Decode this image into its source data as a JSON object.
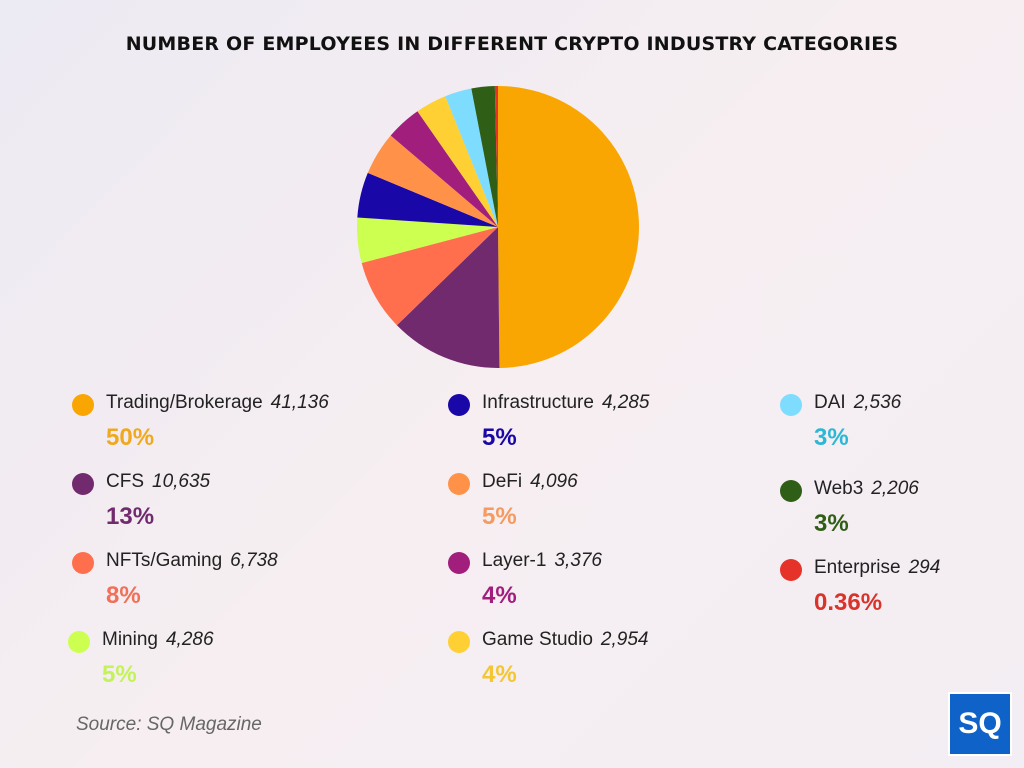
{
  "chart_data": {
    "type": "pie",
    "title": "NUMBER OF EMPLOYEES IN DIFFERENT CRYPTO INDUSTRY CATEGORIES",
    "legend_position": "bottom",
    "slices": [
      {
        "label": "Trading/Brokerage",
        "value": 41136,
        "value_label": "41,136",
        "percent": "50%",
        "color": "#F9A602",
        "text_color": "#F0A91E"
      },
      {
        "label": "CFS",
        "value": 10635,
        "value_label": "10,635",
        "percent": "13%",
        "color": "#722A6F",
        "text_color": "#722A6F"
      },
      {
        "label": "NFTs/Gaming",
        "value": 6738,
        "value_label": "6,738",
        "percent": "8%",
        "color": "#FF6F4E",
        "text_color": "#F07058"
      },
      {
        "label": "Mining",
        "value": 4286,
        "value_label": "4,286",
        "percent": "5%",
        "color": "#CCFF4F",
        "text_color": "#C4F25A"
      },
      {
        "label": "Infrastructure",
        "value": 4285,
        "value_label": "4,285",
        "percent": "5%",
        "color": "#1A07A8",
        "text_color": "#1A07A8"
      },
      {
        "label": "DeFi",
        "value": 4096,
        "value_label": "4,096",
        "percent": "5%",
        "color": "#FF9248",
        "text_color": "#F59A60"
      },
      {
        "label": "Layer-1",
        "value": 3376,
        "value_label": "3,376",
        "percent": "4%",
        "color": "#A21E7D",
        "text_color": "#A21E7D"
      },
      {
        "label": "Game Studio",
        "value": 2954,
        "value_label": "2,954",
        "percent": "4%",
        "color": "#FFD033",
        "text_color": "#F2C634"
      },
      {
        "label": "DAI",
        "value": 2536,
        "value_label": "2,536",
        "percent": "3%",
        "color": "#7EDCFF",
        "text_color": "#2BB8D6"
      },
      {
        "label": "Web3",
        "value": 2206,
        "value_label": "2,206",
        "percent": "3%",
        "color": "#2F5E16",
        "text_color": "#2F5E16"
      },
      {
        "label": "Enterprise",
        "value": 294,
        "value_label": "294",
        "percent": "0.36%",
        "color": "#E6332A",
        "text_color": "#D9342B"
      }
    ]
  },
  "source": "Source: SQ Magazine",
  "logo": "SQ"
}
